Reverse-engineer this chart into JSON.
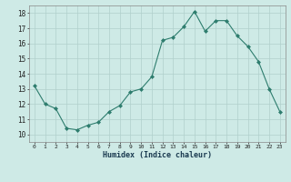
{
  "x": [
    0,
    1,
    2,
    3,
    4,
    5,
    6,
    7,
    8,
    9,
    10,
    11,
    12,
    13,
    14,
    15,
    16,
    17,
    18,
    19,
    20,
    21,
    22,
    23
  ],
  "y": [
    13.2,
    12.0,
    11.7,
    10.4,
    10.3,
    10.6,
    10.8,
    11.5,
    11.9,
    12.8,
    13.0,
    13.8,
    16.2,
    16.4,
    17.1,
    18.1,
    16.8,
    17.5,
    17.5,
    16.5,
    15.8,
    14.8,
    13.0,
    11.5
  ],
  "line_color": "#2e7d6e",
  "marker_color": "#2e7d6e",
  "bg_color": "#ceeae6",
  "grid_color": "#b0d0cc",
  "xlabel": "Humidex (Indice chaleur)",
  "xlim": [
    -0.5,
    23.5
  ],
  "ylim": [
    9.5,
    18.5
  ],
  "yticks": [
    10,
    11,
    12,
    13,
    14,
    15,
    16,
    17,
    18
  ],
  "xticks": [
    0,
    1,
    2,
    3,
    4,
    5,
    6,
    7,
    8,
    9,
    10,
    11,
    12,
    13,
    14,
    15,
    16,
    17,
    18,
    19,
    20,
    21,
    22,
    23
  ]
}
